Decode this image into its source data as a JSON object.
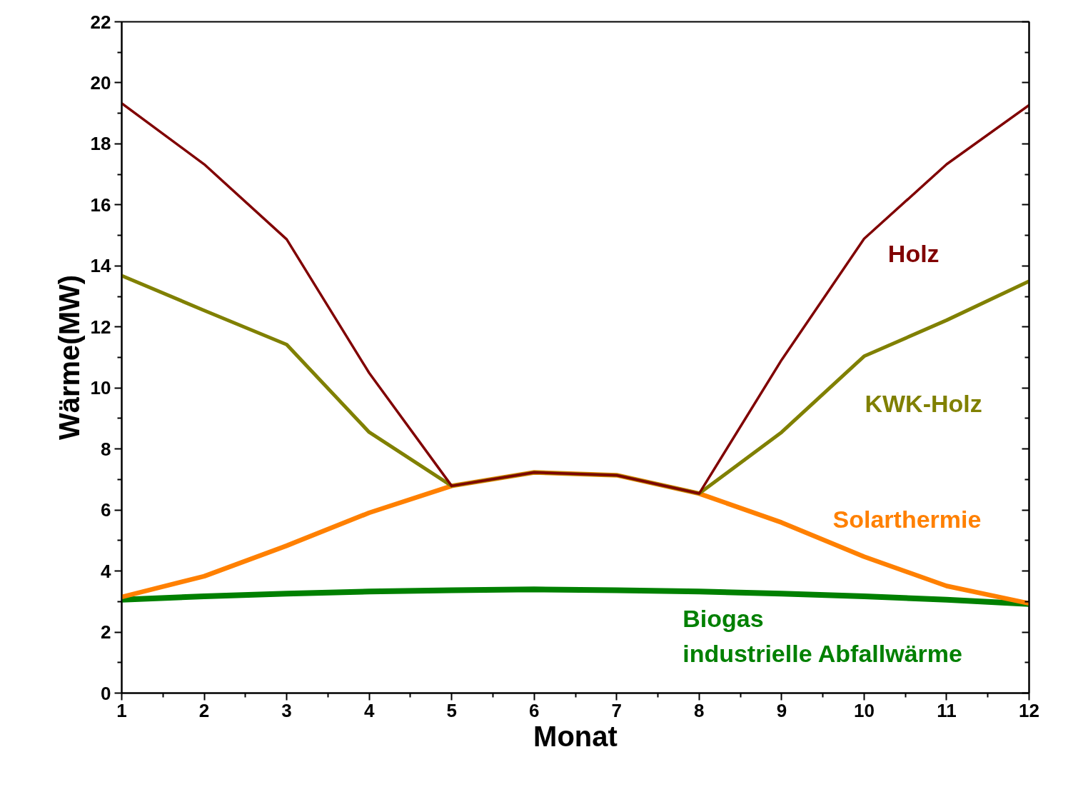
{
  "chart_data": {
    "type": "line",
    "xlabel": "Monat",
    "ylabel": "Wärme(MW)",
    "x": [
      1,
      2,
      3,
      4,
      5,
      6,
      7,
      8,
      9,
      10,
      11,
      12
    ],
    "xlim": [
      1,
      12
    ],
    "xticks": [
      1,
      2,
      3,
      4,
      5,
      6,
      7,
      8,
      9,
      10,
      11,
      12
    ],
    "ylim": [
      0,
      22
    ],
    "yticks": [
      0,
      2,
      4,
      6,
      8,
      10,
      12,
      14,
      16,
      18,
      20,
      22
    ],
    "grid": false,
    "marker": "none",
    "line_style": "solid",
    "series": [
      {
        "name": "Holz",
        "color": "#800000",
        "values": [
          19.33,
          17.33,
          14.87,
          10.49,
          6.79,
          7.23,
          7.14,
          6.54,
          10.92,
          14.89,
          17.33,
          19.27
        ]
      },
      {
        "name": "KWK-Holz",
        "color": "#808000",
        "values": [
          13.68,
          12.54,
          11.42,
          8.55,
          6.79,
          7.23,
          7.14,
          6.54,
          8.55,
          11.04,
          12.22,
          13.5
        ]
      },
      {
        "name": "Solarthermie",
        "color": "#ff8000",
        "values": [
          3.15,
          3.83,
          4.83,
          5.91,
          6.79,
          7.23,
          7.14,
          6.54,
          5.59,
          4.47,
          3.51,
          2.94
        ]
      },
      {
        "name": "Biogas\nindustrielle Abfallwärme",
        "color": "#008000",
        "values": [
          3.06,
          3.17,
          3.26,
          3.33,
          3.37,
          3.4,
          3.37,
          3.33,
          3.26,
          3.17,
          3.06,
          2.92
        ]
      }
    ]
  }
}
